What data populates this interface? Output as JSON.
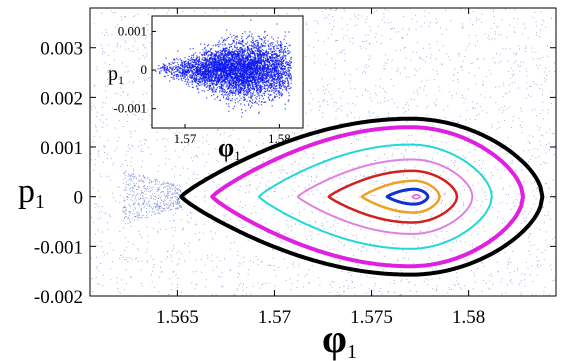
{
  "chart_data": [
    {
      "type": "scatter",
      "title": "",
      "xlabel": "φ",
      "xlabel_sub": "1",
      "ylabel": "p",
      "ylabel_sub": "1",
      "xlim": [
        1.5605,
        1.5845
      ],
      "ylim": [
        -0.002,
        0.0038
      ],
      "xticks": [
        "1.565",
        "1.57",
        "1.575",
        "1.58"
      ],
      "xtick_values": [
        1.565,
        1.57,
        1.575,
        1.58
      ],
      "yticks": [
        "0.003",
        "0.002",
        "0.001",
        "0",
        "-0.001",
        "-0.002"
      ],
      "ytick_values": [
        0.003,
        0.002,
        0.001,
        0,
        -0.001,
        -0.002
      ],
      "grid": false,
      "background_scatter": {
        "color": "#5a6fc8",
        "point_count": 2600
      },
      "series": [
        {
          "color": "#000000",
          "width": 4,
          "x_min": 1.5652,
          "x_max": 1.5838,
          "y_amp": 0.00157,
          "peak_x": 1.577
        },
        {
          "color": "#e020e0",
          "width": 4,
          "x_min": 1.5668,
          "x_max": 1.5828,
          "y_amp": 0.0014,
          "peak_x": 1.577
        },
        {
          "color": "#20d8d8",
          "width": 2,
          "x_min": 1.5692,
          "x_max": 1.5812,
          "y_amp": 0.00105,
          "peak_x": 1.577
        },
        {
          "color": "#e080e0",
          "width": 2,
          "x_min": 1.5712,
          "x_max": 1.5802,
          "y_amp": 0.00075,
          "peak_x": 1.5771
        },
        {
          "color": "#d02020",
          "width": 2.5,
          "x_min": 1.5728,
          "x_max": 1.5794,
          "y_amp": 0.00052,
          "peak_x": 1.5771
        },
        {
          "color": "#f0a020",
          "width": 2.5,
          "x_min": 1.5745,
          "x_max": 1.5785,
          "y_amp": 0.00032,
          "peak_x": 1.5772
        },
        {
          "color": "#1030d0",
          "width": 3,
          "x_min": 1.5758,
          "x_max": 1.5779,
          "y_amp": 0.00015,
          "peak_x": 1.5772
        },
        {
          "color": "#e060e0",
          "width": 1.5,
          "x_min": 1.5771,
          "x_max": 1.5775,
          "y_amp": 4e-05,
          "peak_x": 1.5773
        }
      ]
    },
    {
      "type": "scatter",
      "title": "",
      "xlabel": "φ",
      "xlabel_sub": "1",
      "ylabel": "p",
      "ylabel_sub": "1",
      "xlim": [
        1.5665,
        1.5825
      ],
      "ylim": [
        -0.0015,
        0.0014
      ],
      "xticks": [
        "1.57",
        "1.58"
      ],
      "xtick_values": [
        1.57,
        1.58
      ],
      "yticks": [
        "0.001",
        "0",
        "-0.001"
      ],
      "ytick_values": [
        0.001,
        0,
        -0.001
      ],
      "grid": false,
      "cloud": {
        "color": "#0a14f0",
        "center_x": 1.5757,
        "center_y": 2e-05,
        "point_count": 5200
      }
    }
  ]
}
